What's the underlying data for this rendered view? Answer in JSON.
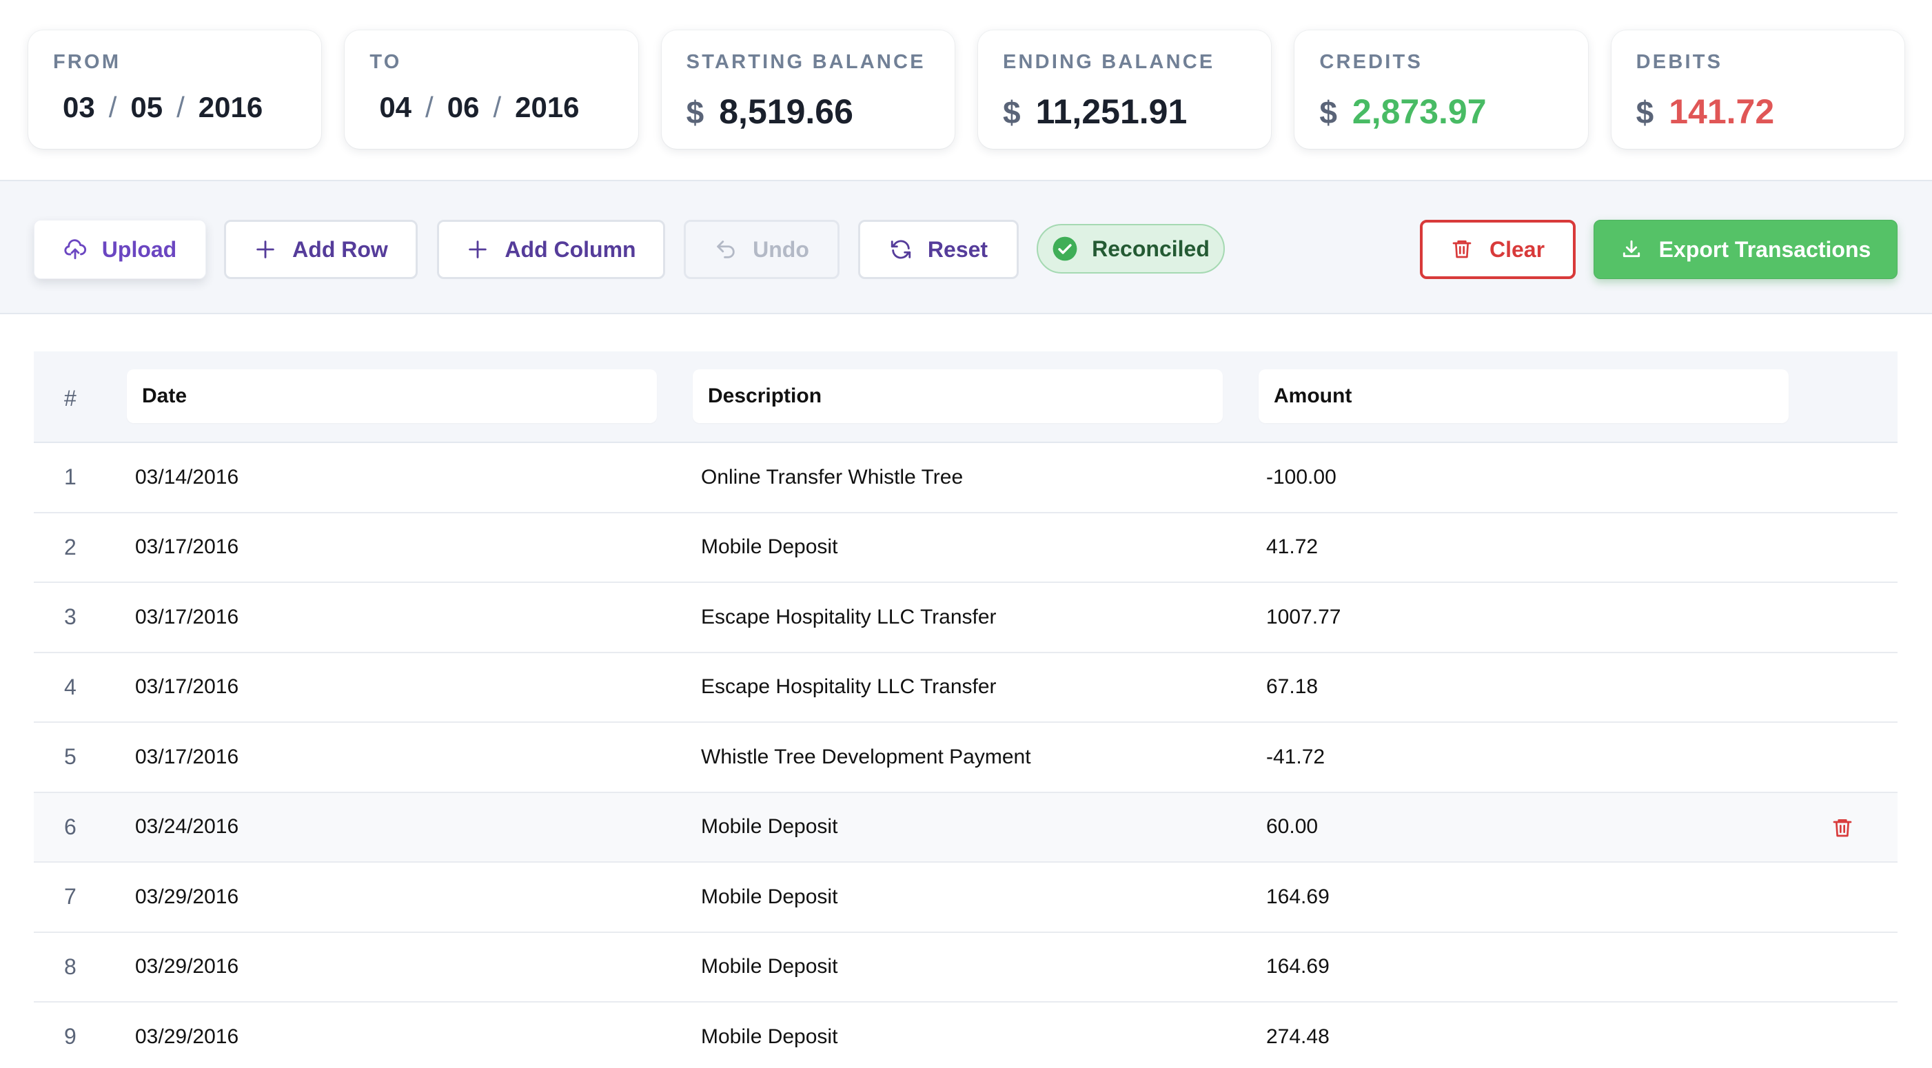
{
  "summary": {
    "from": {
      "label": "FROM",
      "month": "03",
      "day": "05",
      "year": "2016"
    },
    "to": {
      "label": "TO",
      "month": "04",
      "day": "06",
      "year": "2016"
    },
    "starting_balance": {
      "label": "STARTING BALANCE",
      "currency": "$",
      "value": "8,519.66"
    },
    "ending_balance": {
      "label": "ENDING BALANCE",
      "currency": "$",
      "value": "11,251.91"
    },
    "credits": {
      "label": "CREDITS",
      "currency": "$",
      "value": "2,873.97",
      "color": "#48bb64"
    },
    "debits": {
      "label": "DEBITS",
      "currency": "$",
      "value": "141.72",
      "color": "#e05656"
    },
    "date_separator": "/"
  },
  "toolbar": {
    "upload_label": "Upload",
    "add_row_label": "Add Row",
    "add_column_label": "Add Column",
    "undo_label": "Undo",
    "reset_label": "Reset",
    "status_label": "Reconciled",
    "clear_label": "Clear",
    "export_label": "Export Transactions",
    "icons": [
      "upload-cloud-icon",
      "plus-icon",
      "undo-arrow-icon",
      "refresh-icon",
      "check-circle-icon",
      "trash-icon",
      "download-icon"
    ]
  },
  "table": {
    "columns": [
      "#",
      "Date",
      "Description",
      "Amount"
    ],
    "rows": [
      {
        "n": "1",
        "date": "03/14/2016",
        "description": "Online Transfer Whistle Tree",
        "amount": "-100.00"
      },
      {
        "n": "2",
        "date": "03/17/2016",
        "description": "Mobile Deposit",
        "amount": "41.72"
      },
      {
        "n": "3",
        "date": "03/17/2016",
        "description": "Escape Hospitality LLC Transfer",
        "amount": "1007.77"
      },
      {
        "n": "4",
        "date": "03/17/2016",
        "description": "Escape Hospitality LLC Transfer",
        "amount": "67.18"
      },
      {
        "n": "5",
        "date": "03/17/2016",
        "description": "Whistle Tree Development Payment",
        "amount": "-41.72"
      },
      {
        "n": "6",
        "date": "03/24/2016",
        "description": "Mobile Deposit",
        "amount": "60.00"
      },
      {
        "n": "7",
        "date": "03/29/2016",
        "description": "Mobile Deposit",
        "amount": "164.69"
      },
      {
        "n": "8",
        "date": "03/29/2016",
        "description": "Mobile Deposit",
        "amount": "164.69"
      },
      {
        "n": "9",
        "date": "03/29/2016",
        "description": "Mobile Deposit",
        "amount": "274.48"
      }
    ],
    "hovered_row": 6
  }
}
